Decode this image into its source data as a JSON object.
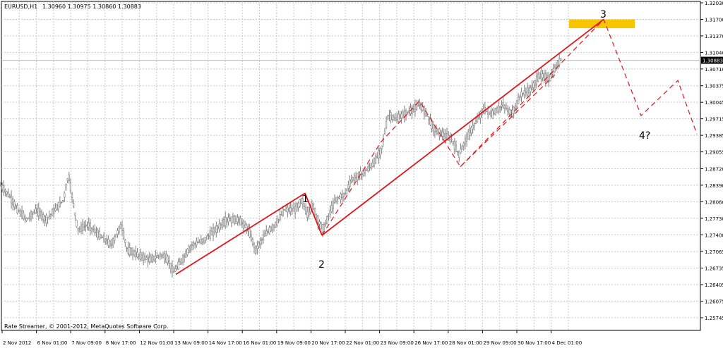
{
  "header": {
    "symbol": "EURUSD,H1",
    "ohlc": "1.30960 1.30975 1.30860 1.30883"
  },
  "footer": {
    "copyright": "Rate Streamer, © 2001-2012, MetaQuotes Software Corp."
  },
  "colors": {
    "background": "#ffffff",
    "grid": "#c8c8c8",
    "candle": "#808080",
    "wave": "#e0161c",
    "target_zone": "#f7c600",
    "price_line": "#a8bccb"
  },
  "chart_data": {
    "type": "candlestick",
    "grid": true,
    "y_axis": {
      "position": "right",
      "ylim": [
        1.256,
        1.321
      ],
      "ticks": [
        "1.32030",
        "1.31700",
        "1.31370",
        "1.31040",
        "1.30710",
        "1.30375",
        "1.30045",
        "1.29715",
        "1.29385",
        "1.29055",
        "1.28720",
        "1.28390",
        "1.28060",
        "1.27730",
        "1.27400",
        "1.27065",
        "1.26735",
        "1.26405",
        "1.26075",
        "1.25745"
      ],
      "current_price": "1.30883"
    },
    "x_axis": {
      "ticks": [
        "2 Nov 2012",
        "6 Nov 01:00",
        "7 Nov 09:00",
        "8 Nov 17:00",
        "12 Nov 01:00",
        "13 Nov 09:00",
        "14 Nov 17:00",
        "16 Nov 01:00",
        "19 Nov 09:00",
        "20 Nov 17:00",
        "22 Nov 01:00",
        "23 Nov 09:00",
        "26 Nov 17:00",
        "28 Nov 01:00",
        "29 Nov 09:00",
        "30 Nov 17:00",
        "4 Dec 01:00"
      ]
    },
    "price_path": [
      [
        0,
        1.284
      ],
      [
        12,
        1.282
      ],
      [
        25,
        1.279
      ],
      [
        38,
        1.277
      ],
      [
        52,
        1.279
      ],
      [
        65,
        1.277
      ],
      [
        78,
        1.279
      ],
      [
        90,
        1.281
      ],
      [
        97,
        1.286
      ],
      [
        103,
        1.281
      ],
      [
        110,
        1.275
      ],
      [
        125,
        1.276
      ],
      [
        140,
        1.274
      ],
      [
        158,
        1.272
      ],
      [
        172,
        1.276
      ],
      [
        180,
        1.271
      ],
      [
        195,
        1.27
      ],
      [
        212,
        1.269
      ],
      [
        228,
        1.27
      ],
      [
        238,
        1.269
      ],
      [
        246,
        1.2665
      ],
      [
        258,
        1.269
      ],
      [
        272,
        1.272
      ],
      [
        290,
        1.273
      ],
      [
        305,
        1.275
      ],
      [
        322,
        1.277
      ],
      [
        338,
        1.277
      ],
      [
        352,
        1.275
      ],
      [
        362,
        1.271
      ],
      [
        375,
        1.274
      ],
      [
        390,
        1.276
      ],
      [
        403,
        1.279
      ],
      [
        418,
        1.279
      ],
      [
        428,
        1.281
      ],
      [
        435,
        1.278
      ],
      [
        443,
        1.28
      ],
      [
        450,
        1.277
      ],
      [
        458,
        1.275
      ],
      [
        466,
        1.278
      ],
      [
        475,
        1.281
      ],
      [
        488,
        1.282
      ],
      [
        498,
        1.285
      ],
      [
        512,
        1.286
      ],
      [
        528,
        1.288
      ],
      [
        540,
        1.291
      ],
      [
        550,
        1.298
      ],
      [
        560,
        1.297
      ],
      [
        572,
        1.298
      ],
      [
        585,
        1.299
      ],
      [
        595,
        1.3
      ],
      [
        605,
        1.298
      ],
      [
        615,
        1.295
      ],
      [
        628,
        1.294
      ],
      [
        640,
        1.293
      ],
      [
        650,
        1.29
      ],
      [
        660,
        1.293
      ],
      [
        672,
        1.296
      ],
      [
        685,
        1.299
      ],
      [
        698,
        1.298
      ],
      [
        712,
        1.3
      ],
      [
        725,
        1.298
      ],
      [
        738,
        1.302
      ],
      [
        752,
        1.303
      ],
      [
        765,
        1.306
      ],
      [
        778,
        1.305
      ],
      [
        790,
        1.308
      ],
      [
        795,
        1.3092
      ]
    ],
    "annotations": {
      "wave_labels": [
        "1",
        "2",
        "3",
        "4?"
      ],
      "waves": [
        {
          "style": "solid",
          "points": [
            [
              249,
              1.2661
            ],
            [
              432,
              1.2823
            ]
          ]
        },
        {
          "style": "solid",
          "points": [
            [
              432,
              1.2823
            ],
            [
              456,
              1.2739
            ]
          ]
        },
        {
          "style": "solid",
          "points": [
            [
              456,
              1.2739
            ],
            [
              855,
              1.317
            ]
          ]
        },
        {
          "style": "dashed",
          "points": [
            [
              456,
              1.2739
            ],
            [
              540,
              1.2926
            ],
            [
              594,
              1.3007
            ],
            [
              652,
              1.2876
            ],
            [
              855,
              1.317
            ],
            [
              908,
              1.2978
            ],
            [
              960,
              1.3048
            ],
            [
              987,
              1.2941
            ]
          ]
        },
        {
          "style": "dashed",
          "points": [
            [
              652,
              1.2876
            ],
            [
              790,
              1.3065
            ]
          ]
        }
      ],
      "target_zone": {
        "x0": 806,
        "x1": 899,
        "y_low": 1.3158,
        "y_high": 1.317
      }
    }
  }
}
